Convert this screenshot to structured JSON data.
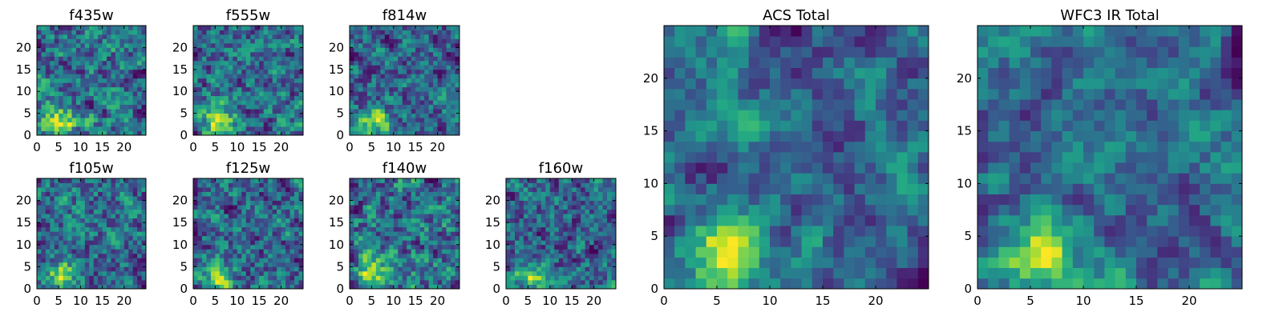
{
  "chart_data": [
    {
      "type": "heatmap",
      "title": "f435w",
      "colormap": "viridis",
      "grid_size": 25,
      "x_ticks": [
        "0",
        "5",
        "10",
        "15",
        "20"
      ],
      "y_ticks": [
        "0",
        "5",
        "10",
        "15",
        "20"
      ],
      "xlim": [
        0,
        25
      ],
      "ylim": [
        0,
        25
      ],
      "seed": 3
    },
    {
      "type": "heatmap",
      "title": "f555w",
      "colormap": "viridis",
      "grid_size": 25,
      "x_ticks": [
        "0",
        "5",
        "10",
        "15",
        "20"
      ],
      "y_ticks": [
        "0",
        "5",
        "10",
        "15",
        "20"
      ],
      "xlim": [
        0,
        25
      ],
      "ylim": [
        0,
        25
      ],
      "seed": 7
    },
    {
      "type": "heatmap",
      "title": "f814w",
      "colormap": "viridis",
      "grid_size": 25,
      "x_ticks": [
        "0",
        "5",
        "10",
        "15",
        "20"
      ],
      "y_ticks": [
        "0",
        "5",
        "10",
        "15",
        "20"
      ],
      "xlim": [
        0,
        25
      ],
      "ylim": [
        0,
        25
      ],
      "seed": 11
    },
    {
      "type": "heatmap",
      "title": "f105w",
      "colormap": "viridis",
      "grid_size": 25,
      "x_ticks": [
        "0",
        "5",
        "10",
        "15",
        "20"
      ],
      "y_ticks": [
        "0",
        "5",
        "10",
        "15",
        "20"
      ],
      "xlim": [
        0,
        25
      ],
      "ylim": [
        0,
        25
      ],
      "seed": 17
    },
    {
      "type": "heatmap",
      "title": "f125w",
      "colormap": "viridis",
      "grid_size": 25,
      "x_ticks": [
        "0",
        "5",
        "10",
        "15",
        "20"
      ],
      "y_ticks": [
        "0",
        "5",
        "10",
        "15",
        "20"
      ],
      "xlim": [
        0,
        25
      ],
      "ylim": [
        0,
        25
      ],
      "seed": 23
    },
    {
      "type": "heatmap",
      "title": "f140w",
      "colormap": "viridis",
      "grid_size": 25,
      "x_ticks": [
        "0",
        "5",
        "10",
        "15",
        "20"
      ],
      "y_ticks": [
        "0",
        "5",
        "10",
        "15",
        "20"
      ],
      "xlim": [
        0,
        25
      ],
      "ylim": [
        0,
        25
      ],
      "seed": 29
    },
    {
      "type": "heatmap",
      "title": "f160w",
      "colormap": "viridis",
      "grid_size": 25,
      "x_ticks": [
        "0",
        "5",
        "10",
        "15",
        "20"
      ],
      "y_ticks": [
        "0",
        "5",
        "10",
        "15",
        "20"
      ],
      "xlim": [
        0,
        25
      ],
      "ylim": [
        0,
        25
      ],
      "seed": 31
    },
    {
      "type": "heatmap",
      "title": "ACS Total",
      "colormap": "viridis",
      "grid_size": 25,
      "x_ticks": [
        "0",
        "5",
        "10",
        "15",
        "20"
      ],
      "y_ticks": [
        "0",
        "5",
        "10",
        "15",
        "20"
      ],
      "xlim": [
        0,
        25
      ],
      "ylim": [
        0,
        25
      ],
      "seed": 41
    },
    {
      "type": "heatmap",
      "title": "WFC3 IR Total",
      "colormap": "viridis",
      "grid_size": 25,
      "x_ticks": [
        "0",
        "5",
        "10",
        "15",
        "20"
      ],
      "y_ticks": [
        "0",
        "5",
        "10",
        "15",
        "20"
      ],
      "xlim": [
        0,
        25
      ],
      "ylim": [
        0,
        25
      ],
      "seed": 53
    }
  ]
}
